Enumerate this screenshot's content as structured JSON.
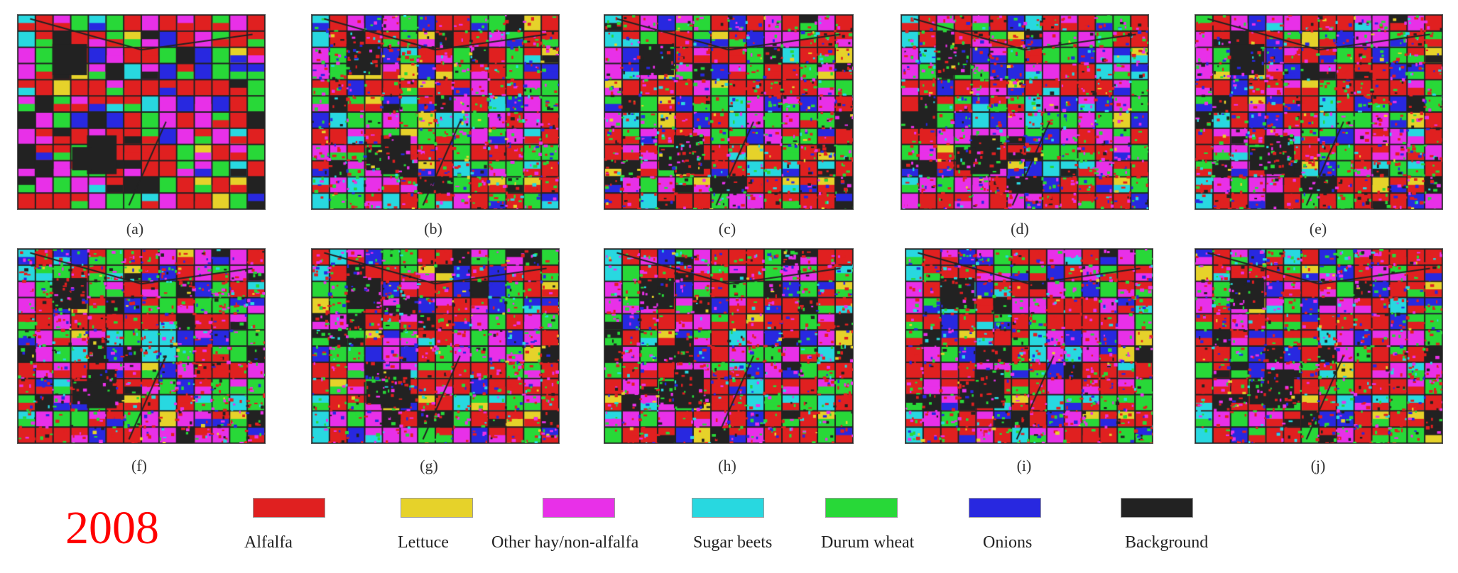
{
  "year": "2008",
  "panels": [
    {
      "caption": "(a)",
      "seed": 11
    },
    {
      "caption": "(b)",
      "seed": 23
    },
    {
      "caption": "(c)",
      "seed": 37
    },
    {
      "caption": "(d)",
      "seed": 41
    },
    {
      "caption": "(e)",
      "seed": 53
    },
    {
      "caption": "(f)",
      "seed": 67
    },
    {
      "caption": "(g)",
      "seed": 71
    },
    {
      "caption": "(h)",
      "seed": 83
    },
    {
      "caption": "(i)",
      "seed": 97
    },
    {
      "caption": "(j)",
      "seed": 101
    }
  ],
  "legend": [
    {
      "label": "Alfalfa",
      "color": "#e02020"
    },
    {
      "label": "Lettuce",
      "color": "#e6d22a"
    },
    {
      "label": "Other hay/non-alfalfa",
      "color": "#e830e8"
    },
    {
      "label": "Sugar beets",
      "color": "#28d8e0"
    },
    {
      "label": "Durum wheat",
      "color": "#28d838"
    },
    {
      "label": "Onions",
      "color": "#2828e0"
    },
    {
      "label": "Background",
      "color": "#222222"
    }
  ]
}
